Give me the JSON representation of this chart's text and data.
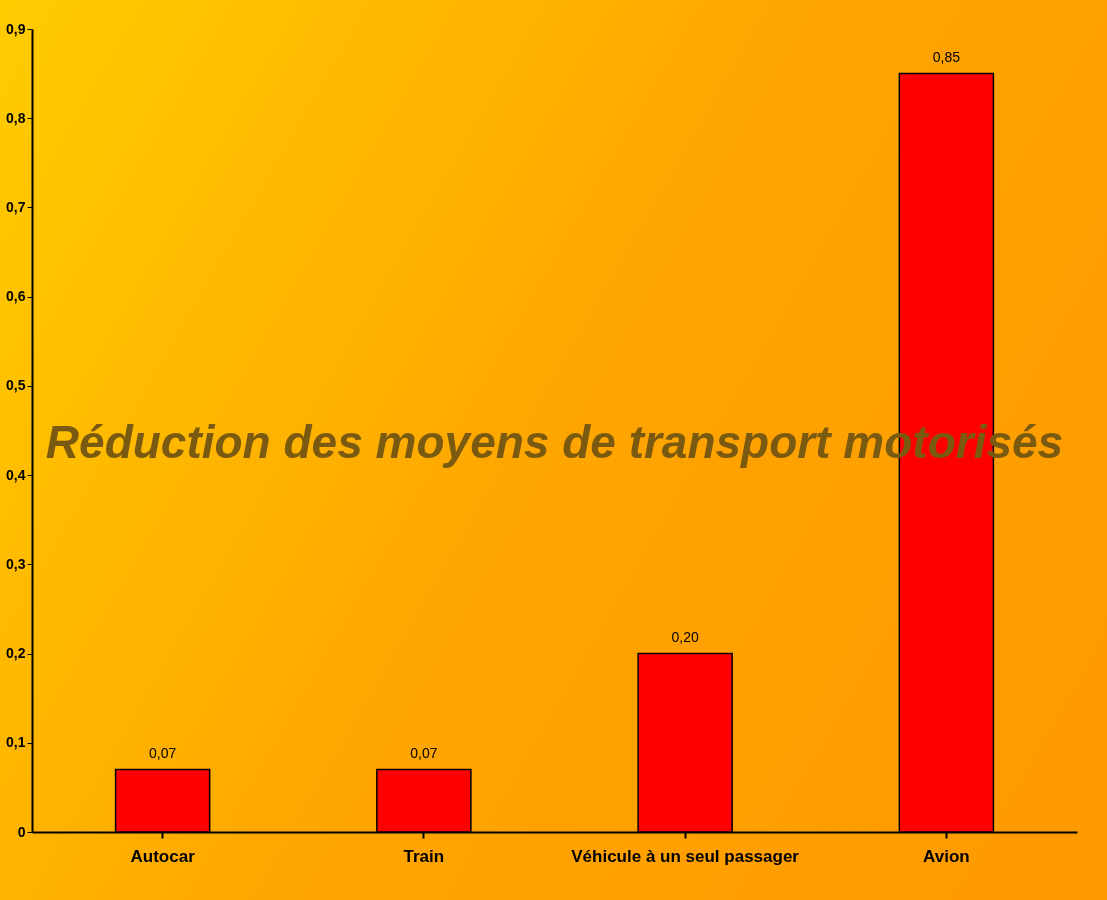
{
  "chart_data": {
    "type": "bar",
    "title": "Réduction des moyens de transport motorisés",
    "categories": [
      "Autocar",
      "Train",
      "Véhicule à un seul passager",
      "Avion"
    ],
    "values": [
      0.07,
      0.07,
      0.2,
      0.85
    ],
    "value_labels": [
      "0,07",
      "0,07",
      "0,20",
      "0,85"
    ],
    "color": "#ff0000",
    "ylim": [
      0,
      0.9
    ],
    "yticks": [
      0,
      {
        "value": 0.1,
        "label": "0,1"
      },
      {
        "value": 0.2,
        "label": "0,2"
      },
      {
        "value": 0.3,
        "label": "0,3"
      },
      {
        "value": 0.4,
        "label": "0,4"
      },
      {
        "value": 0.5,
        "label": "0,5"
      },
      {
        "value": 0.6,
        "label": "0,6"
      },
      {
        "value": 0.7,
        "label": "0,7"
      },
      {
        "value": 0.8,
        "label": "0,8"
      },
      {
        "value": 0.9,
        "label": "0,9"
      }
    ],
    "grid": false
  }
}
